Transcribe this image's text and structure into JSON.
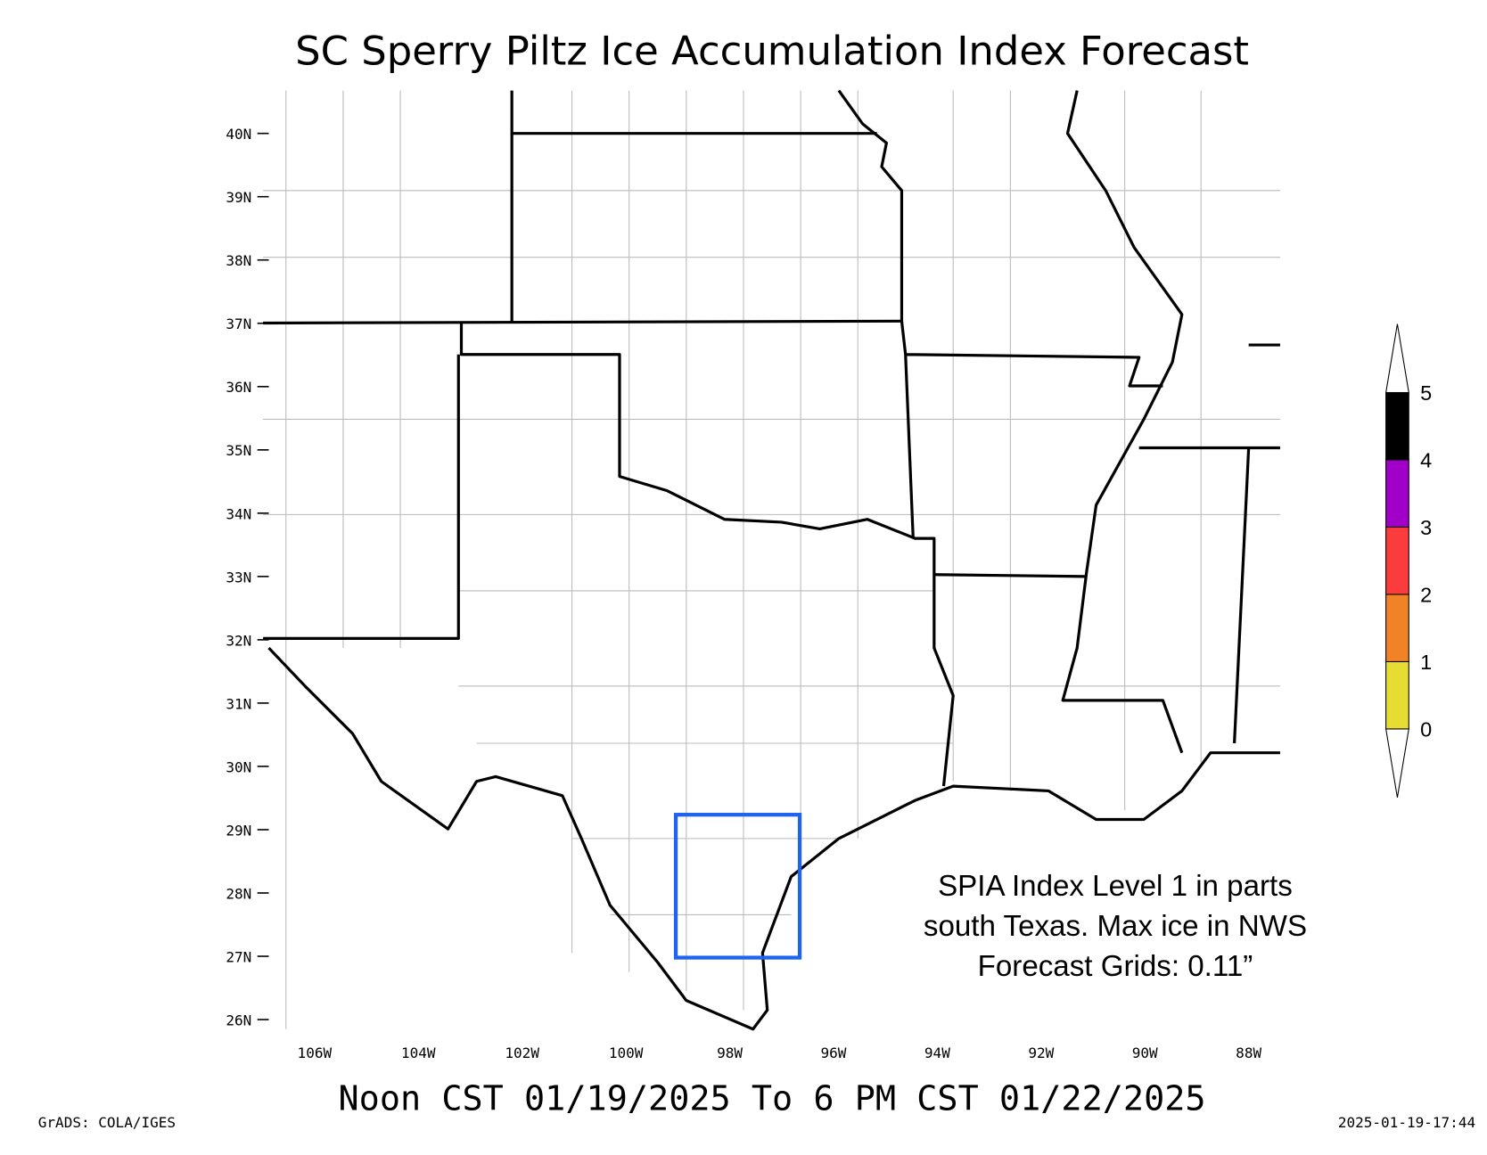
{
  "title": "SC Sperry Piltz Ice Accumulation Index Forecast",
  "subtitle": "Noon CST 01/19/2025 To 6 PM CST 01/22/2025",
  "credit": "GrADS: COLA/IGES",
  "timestamp": "2025-01-19-17:44",
  "lat_labels": [
    "40N",
    "39N",
    "38N",
    "37N",
    "36N",
    "35N",
    "34N",
    "33N",
    "32N",
    "31N",
    "30N",
    "29N",
    "28N",
    "27N",
    "26N"
  ],
  "lon_labels": [
    "106W",
    "104W",
    "102W",
    "100W",
    "98W",
    "96W",
    "94W",
    "92W",
    "90W",
    "88W"
  ],
  "annotation": [
    "SPIA Index Level 1 in parts",
    "south Texas. Max ice in NWS",
    "Forecast Grids: 0.11”"
  ],
  "colorbar": {
    "levels": [
      0,
      1,
      2,
      3,
      4,
      5
    ],
    "colors": [
      "#e6dc32",
      "#f08228",
      "#fa3c3c",
      "#a000c8",
      "#000000"
    ]
  }
}
